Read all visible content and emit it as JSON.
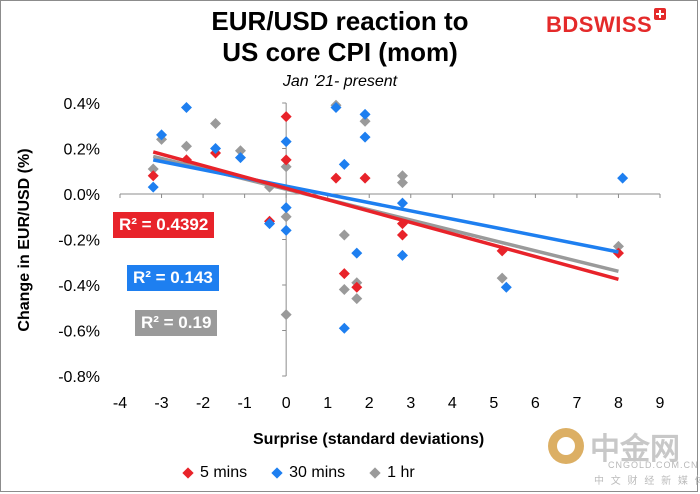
{
  "chart_data": {
    "type": "scatter",
    "title_lines": [
      "EUR/USD reaction to",
      "US core CPI (mom)"
    ],
    "subtitle": "Jan '21- present",
    "xlabel": "Surprise (standard deviations)",
    "ylabel": "Change in EUR/USD  (%)",
    "xlim": [
      -4,
      9
    ],
    "ylim": [
      -0.8,
      0.4
    ],
    "x_ticks": [
      "-4",
      "-3",
      "-2",
      "-1",
      "0",
      "1",
      "2",
      "3",
      "4",
      "5",
      "6",
      "7",
      "8",
      "9"
    ],
    "y_ticks": [
      "0.4%",
      "0.2%",
      "0.0%",
      "-0.2%",
      "-0.4%",
      "-0.6%",
      "-0.8%"
    ],
    "series": [
      {
        "name": "5 mins",
        "color": "#e8232a",
        "points": [
          [
            -3.2,
            0.08
          ],
          [
            -2.4,
            0.15
          ],
          [
            -1.7,
            0.18
          ],
          [
            -0.4,
            -0.12
          ],
          [
            0,
            0.34
          ],
          [
            0,
            0.15
          ],
          [
            1.2,
            0.07
          ],
          [
            1.4,
            -0.35
          ],
          [
            1.7,
            -0.41
          ],
          [
            1.9,
            0.07
          ],
          [
            2.8,
            -0.13
          ],
          [
            2.8,
            -0.18
          ],
          [
            5.2,
            -0.25
          ],
          [
            8.0,
            -0.26
          ]
        ],
        "trend": [
          [
            -3.2,
            0.185
          ],
          [
            8.0,
            -0.375
          ]
        ],
        "r2": "R² = 0.4392"
      },
      {
        "name": "30 mins",
        "color": "#1e7ff0",
        "points": [
          [
            -3.2,
            0.03
          ],
          [
            -3.0,
            0.26
          ],
          [
            -2.4,
            0.38
          ],
          [
            -1.7,
            0.2
          ],
          [
            -1.1,
            0.16
          ],
          [
            -0.4,
            -0.13
          ],
          [
            0,
            0.23
          ],
          [
            0,
            -0.06
          ],
          [
            0,
            -0.16
          ],
          [
            1.2,
            0.38
          ],
          [
            1.4,
            0.13
          ],
          [
            1.4,
            -0.59
          ],
          [
            1.7,
            -0.26
          ],
          [
            1.9,
            0.25
          ],
          [
            1.9,
            0.35
          ],
          [
            2.8,
            -0.04
          ],
          [
            2.8,
            -0.27
          ],
          [
            5.3,
            -0.41
          ],
          [
            8.1,
            0.07
          ]
        ],
        "trend": [
          [
            -3.2,
            0.15
          ],
          [
            8.0,
            -0.255
          ]
        ],
        "r2": "R² = 0.143"
      },
      {
        "name": "1 hr",
        "color": "#9a9a9a",
        "points": [
          [
            -3.2,
            0.11
          ],
          [
            -3.0,
            0.24
          ],
          [
            -2.4,
            0.21
          ],
          [
            -1.7,
            0.31
          ],
          [
            -1.1,
            0.19
          ],
          [
            -0.4,
            0.03
          ],
          [
            0,
            0.12
          ],
          [
            0,
            -0.1
          ],
          [
            0,
            -0.53
          ],
          [
            1.2,
            0.39
          ],
          [
            1.4,
            -0.18
          ],
          [
            1.4,
            -0.42
          ],
          [
            1.7,
            -0.39
          ],
          [
            1.7,
            -0.46
          ],
          [
            1.9,
            0.32
          ],
          [
            2.8,
            0.08
          ],
          [
            2.8,
            0.05
          ],
          [
            5.2,
            -0.37
          ],
          [
            8.0,
            -0.23
          ]
        ],
        "trend": [
          [
            -3.2,
            0.165
          ],
          [
            8.0,
            -0.34
          ]
        ],
        "r2": "R² = 0.19"
      }
    ]
  },
  "brand": {
    "bd": "BD",
    "swiss": "SWISS"
  },
  "watermark": {
    "cn": "中金网",
    "domain": "CNGOLD.COM.CN",
    "sub": "中 文 财 经 新 媒 体"
  }
}
